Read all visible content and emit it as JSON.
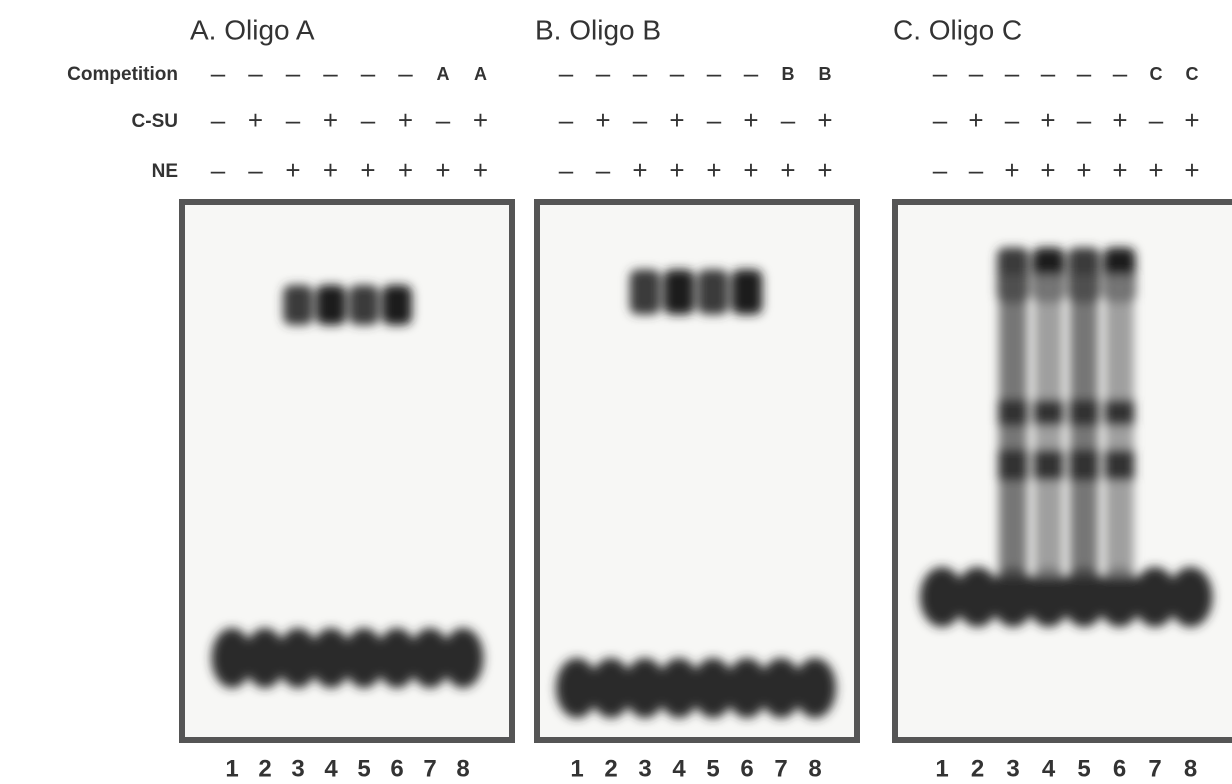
{
  "row_labels": [
    "Competition",
    "C-SU",
    "NE"
  ],
  "panels": [
    {
      "title": "A. Oligo A",
      "rows": [
        [
          "–",
          "–",
          "–",
          "–",
          "–",
          "–",
          "A",
          "A"
        ],
        [
          "–",
          "+",
          "–",
          "+",
          "–",
          "+",
          "–",
          "+"
        ],
        [
          "–",
          "–",
          "+",
          "+",
          "+",
          "+",
          "+",
          "+"
        ]
      ],
      "lanes": [
        "1",
        "2",
        "3",
        "4",
        "5",
        "6",
        "7",
        "8"
      ]
    },
    {
      "title": "B. Oligo B",
      "rows": [
        [
          "–",
          "–",
          "–",
          "–",
          "–",
          "–",
          "B",
          "B"
        ],
        [
          "–",
          "+",
          "–",
          "+",
          "–",
          "+",
          "–",
          "+"
        ],
        [
          "–",
          "–",
          "+",
          "+",
          "+",
          "+",
          "+",
          "+"
        ]
      ],
      "lanes": [
        "1",
        "2",
        "3",
        "4",
        "5",
        "6",
        "7",
        "8"
      ]
    },
    {
      "title": "C. Oligo C",
      "rows": [
        [
          "–",
          "–",
          "–",
          "–",
          "–",
          "–",
          "C",
          "C"
        ],
        [
          "–",
          "+",
          "–",
          "+",
          "–",
          "+",
          "–",
          "+"
        ],
        [
          "–",
          "–",
          "+",
          "+",
          "+",
          "+",
          "+",
          "+"
        ]
      ],
      "lanes": [
        "1",
        "2",
        "3",
        "4",
        "5",
        "6",
        "7",
        "8"
      ]
    }
  ]
}
